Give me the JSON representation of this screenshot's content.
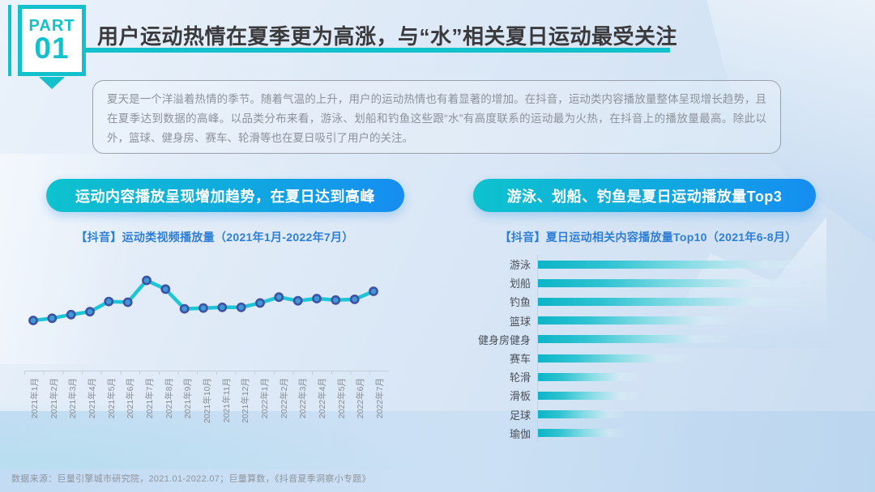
{
  "page": {
    "part_label": "PART",
    "part_number": "01",
    "title": "用户运动热情在夏季更为高涨，与“水”相关夏日运动最受关注",
    "summary": "夏天是一个洋溢着热情的季节。随着气温的上升，用户的运动热情也有着显著的增加。在抖音，运动类内容播放量整体呈现增长趋势，且在夏季达到数据的高峰。以品类分布来看，游泳、划船和钓鱼这些跟“水”有高度联系的运动最为火热，在抖音上的播放量最高。除此以外，篮球、健身房、赛车、轮滑等也在夏日吸引了用户的关注。",
    "source": "数据来源：巨量引擎城市研究院，2021.01-2022.07；巨量算数，《抖音夏季洞察小专题》"
  },
  "left_section": {
    "pill": "运动内容播放呈现增加趋势，在夏日达到高峰",
    "chart_title": "【抖音】运动类视频播放量（2021年1月-2022年7月）"
  },
  "right_section": {
    "pill": "游泳、划船、钓鱼是夏日运动播放量Top3",
    "chart_title": "【抖音】夏日运动相关内容播放量Top10（2021年6-8月）"
  },
  "colors": {
    "accent_teal": "#12c1cb",
    "pill_gradient_start": "#0ec2ce",
    "pill_gradient_end": "#168df2",
    "chart_title_blue": "#2e7ed8",
    "line_color": "#1ec6d4",
    "marker_fill": "#3d9ad6",
    "marker_ring": "#3f51a5",
    "bar_teal": "#0bb5c7",
    "title_text": "#3a3a3c",
    "body_text": "#8d929a"
  },
  "chart_data": [
    {
      "type": "line",
      "title": "【抖音】运动类视频播放量（2021年1月-2022年7月）",
      "x": [
        "2021年1月",
        "2021年2月",
        "2021年3月",
        "2021年4月",
        "2021年5月",
        "2021年6月",
        "2021年7月",
        "2021年8月",
        "2021年9月",
        "2021年10月",
        "2021年11月",
        "2021年12月",
        "2022年1月",
        "2022年2月",
        "2022年3月",
        "2022年4月",
        "2022年5月",
        "2022年6月",
        "2022年7月"
      ],
      "values": [
        45,
        48,
        53,
        57,
        71,
        70,
        100,
        88,
        61,
        62,
        63,
        63,
        69,
        77,
        72,
        75,
        73,
        74,
        85
      ],
      "xlabel": "",
      "ylabel": "",
      "y_axis_visible": false,
      "grid": false,
      "legend": "none",
      "value_scale": "relative index, peak (2021年7月) = 100"
    },
    {
      "type": "bar",
      "orientation": "horizontal",
      "title": "【抖音】夏日运动相关内容播放量Top10（2021年6-8月）",
      "categories": [
        "游泳",
        "划船",
        "钓鱼",
        "篮球",
        "健身房健身",
        "赛车",
        "轮滑",
        "滑板",
        "足球",
        "瑜伽"
      ],
      "values": [
        100,
        95,
        94,
        72,
        69,
        53,
        36,
        36,
        31,
        31
      ],
      "xlabel": "",
      "ylabel": "",
      "value_axis_visible": false,
      "grid": false,
      "legend": "none",
      "value_scale": "relative index, 游泳 = 100"
    }
  ]
}
